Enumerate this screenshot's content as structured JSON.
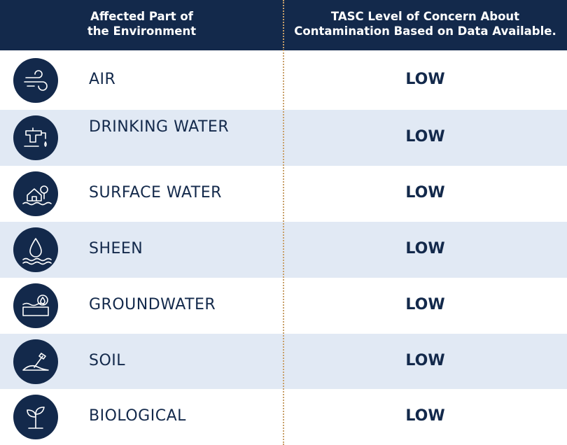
{
  "header": {
    "columns": [
      [
        "Affected Part of",
        "the Environment"
      ],
      [
        "TASC Level of Concern About",
        "Contamination Based on Data Available."
      ]
    ]
  },
  "rows": [
    {
      "label": "AIR",
      "level": "LOW"
    },
    {
      "label": "DRINKING WATER",
      "level": "LOW"
    },
    {
      "label": "SURFACE WATER",
      "level": "LOW"
    },
    {
      "label": "SHEEN",
      "level": "LOW"
    },
    {
      "label": "GROUNDWATER",
      "level": "LOW"
    },
    {
      "label": "SOIL",
      "level": "LOW"
    },
    {
      "label": "BIOLOGICAL",
      "level": "LOW"
    }
  ]
}
